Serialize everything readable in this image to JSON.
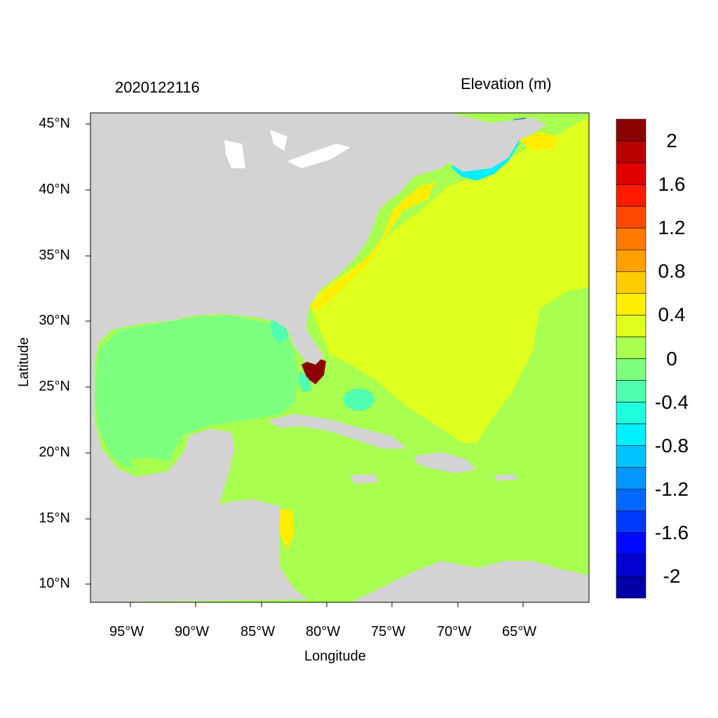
{
  "header": {
    "date": "2020122116",
    "title": "Elevation (m)"
  },
  "axes": {
    "xlabel": "Longitude",
    "ylabel": "Latitude",
    "xticks": [
      "95°W",
      "90°W",
      "85°W",
      "80°W",
      "75°W",
      "70°W",
      "65°W"
    ],
    "yticks": [
      "45°N",
      "40°N",
      "35°N",
      "30°N",
      "25°N",
      "20°N",
      "15°N",
      "10°N"
    ]
  },
  "map_data": {
    "type": "filled-contour map",
    "lon_range": [
      -98.0,
      -60.0
    ],
    "lat_range": [
      8.5,
      46.0
    ],
    "land_color": "#d3d3d3"
  },
  "colorbar": {
    "labels": [
      "2",
      "1.6",
      "1.2",
      "0.8",
      "0.4",
      "0",
      "-0.4",
      "-0.8",
      "-1.2",
      "-1.6",
      "-2"
    ],
    "colors": [
      "#8b0000",
      "#b80000",
      "#e00000",
      "#ff1a00",
      "#ff4800",
      "#ff7a00",
      "#ffa000",
      "#ffcc00",
      "#ffee00",
      "#dfff1f",
      "#a8ff4f",
      "#7fff7f",
      "#4fffaf",
      "#1fffdf",
      "#00f0ff",
      "#00c4ff",
      "#0098ff",
      "#0068ff",
      "#0038ff",
      "#0008ff",
      "#0000d0",
      "#0000a8"
    ]
  }
}
